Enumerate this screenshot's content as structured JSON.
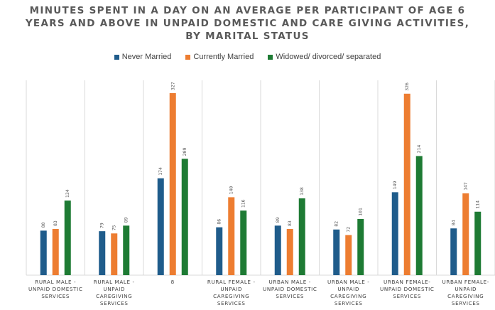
{
  "title_lines": [
    "MINUTES SPENT IN A DAY ON AN AVERAGE PER PARTICIPANT OF AGE 6",
    "YEARS AND ABOVE IN UNPAID DOMESTIC AND CARE GIVING ACTIVITIES,",
    "BY MARITAL STATUS"
  ],
  "chart_data": {
    "type": "bar",
    "title": "MINUTES SPENT IN A DAY ON AN AVERAGE PER PARTICIPANT OF AGE 6 YEARS AND ABOVE IN UNPAID DOMESTIC AND CARE GIVING ACTIVITIES, BY MARITAL STATUS",
    "categories": [
      [
        "RURAL MALE -",
        "UNPAID DOMESTIC",
        "SERVICES"
      ],
      [
        "RURAL MALE -",
        "UNPAID",
        "CAREGIVING",
        "SERVICES"
      ],
      [
        "8"
      ],
      [
        "RURAL FEMALE -",
        "UNPAID",
        "CAREGIVING",
        "SERVICES"
      ],
      [
        "URBAN MALE -",
        "UNPAID DOMESTIC",
        "SERVICES"
      ],
      [
        "URBAN MALE -",
        "UNPAID",
        "CAREGIVING",
        "SERVICES"
      ],
      [
        "URBAN FEMALE-",
        "UNPAID DOMESTIC",
        "SERVICES"
      ],
      [
        "URBAN FEMALE-",
        "UNPAID",
        "CAREGIVING",
        "SERVICES"
      ]
    ],
    "series": [
      {
        "name": "Never Married",
        "color": "#1f5c8b",
        "values": [
          80,
          79,
          174,
          86,
          89,
          82,
          149,
          84
        ]
      },
      {
        "name": "Currently Married",
        "color": "#ed7d31",
        "values": [
          83,
          75,
          327,
          140,
          83,
          72,
          326,
          147
        ]
      },
      {
        "name": "Widowed/ divorced/ separated",
        "color": "#1e7b34",
        "values": [
          134,
          89,
          209,
          116,
          138,
          101,
          214,
          114
        ]
      }
    ],
    "ylim": [
      0,
      327
    ],
    "grid": "vertical category separators",
    "legend_position": "top-center"
  }
}
